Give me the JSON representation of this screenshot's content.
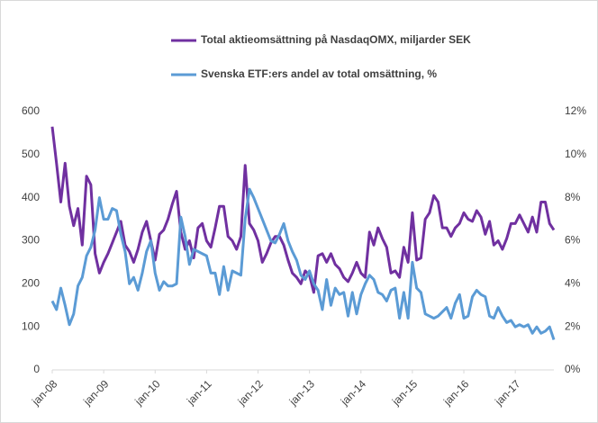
{
  "chart_data": {
    "type": "line",
    "categories": [
      "jan-08",
      null,
      null,
      null,
      null,
      null,
      null,
      null,
      null,
      null,
      null,
      null,
      "jan-09",
      null,
      null,
      null,
      null,
      null,
      null,
      null,
      null,
      null,
      null,
      null,
      "jan-10",
      null,
      null,
      null,
      null,
      null,
      null,
      null,
      null,
      null,
      null,
      null,
      "jan-11",
      null,
      null,
      null,
      null,
      null,
      null,
      null,
      null,
      null,
      null,
      null,
      "jan-12",
      null,
      null,
      null,
      null,
      null,
      null,
      null,
      null,
      null,
      null,
      null,
      "jan-13",
      null,
      null,
      null,
      null,
      null,
      null,
      null,
      null,
      null,
      null,
      null,
      "jan-14",
      null,
      null,
      null,
      null,
      null,
      null,
      null,
      null,
      null,
      null,
      null,
      "jan-15",
      null,
      null,
      null,
      null,
      null,
      null,
      null,
      null,
      null,
      null,
      null,
      "jan-16",
      null,
      null,
      null,
      null,
      null,
      null,
      null,
      null,
      null,
      null,
      null,
      "jan-17",
      null,
      null,
      null,
      null,
      null,
      null,
      null,
      null,
      null
    ],
    "series": [
      {
        "name": "Total aktieomsättning på NasdaqOMX, miljarder SEK",
        "color": "#7030a0",
        "values": [
          565,
          480,
          390,
          480,
          380,
          335,
          375,
          290,
          450,
          430,
          270,
          225,
          250,
          270,
          295,
          320,
          345,
          290,
          275,
          250,
          280,
          320,
          345,
          300,
          255,
          315,
          325,
          350,
          385,
          415,
          320,
          280,
          300,
          260,
          330,
          340,
          300,
          285,
          330,
          380,
          380,
          310,
          300,
          280,
          310,
          475,
          340,
          325,
          300,
          250,
          270,
          295,
          310,
          310,
          290,
          255,
          225,
          215,
          200,
          230,
          220,
          180,
          265,
          270,
          250,
          270,
          245,
          235,
          215,
          205,
          225,
          250,
          225,
          215,
          320,
          290,
          330,
          305,
          285,
          225,
          230,
          215,
          285,
          250,
          365,
          255,
          260,
          350,
          365,
          405,
          390,
          330,
          330,
          310,
          330,
          340,
          365,
          350,
          345,
          370,
          355,
          315,
          345,
          290,
          300,
          280,
          305,
          340,
          340,
          360,
          340,
          320,
          355,
          320,
          390,
          390,
          340,
          325
        ]
      },
      {
        "name": "Svenska ETF:ers andel av total omsättning, %",
        "color": "#5b9bd5",
        "axis": "y2",
        "values": [
          3.2,
          2.8,
          3.8,
          3.0,
          2.1,
          2.6,
          3.9,
          4.3,
          5.3,
          5.7,
          6.5,
          8.0,
          7.0,
          7.0,
          7.5,
          7.4,
          6.3,
          5.5,
          4.0,
          4.3,
          3.7,
          4.5,
          5.5,
          6.0,
          4.5,
          3.7,
          4.1,
          3.9,
          3.9,
          4.0,
          7.1,
          6.2,
          4.9,
          5.6,
          5.5,
          5.4,
          5.3,
          4.5,
          4.5,
          3.5,
          4.8,
          3.7,
          4.6,
          4.5,
          4.4,
          7.0,
          8.4,
          8.0,
          7.5,
          7.0,
          6.5,
          6.0,
          5.9,
          6.3,
          6.8,
          6.0,
          5.5,
          5.1,
          4.4,
          4.2,
          4.6,
          4.0,
          3.7,
          2.8,
          4.2,
          3.0,
          3.8,
          3.5,
          3.6,
          2.5,
          3.6,
          2.6,
          3.5,
          4.0,
          4.4,
          4.2,
          3.6,
          3.5,
          3.2,
          3.7,
          3.8,
          2.4,
          3.6,
          2.4,
          5.0,
          3.8,
          3.6,
          2.6,
          2.5,
          2.4,
          2.5,
          2.7,
          2.9,
          2.4,
          3.1,
          3.5,
          2.4,
          2.5,
          3.4,
          3.7,
          3.5,
          3.4,
          2.5,
          2.4,
          2.9,
          2.5,
          2.2,
          2.3,
          2.0,
          2.1,
          2.0,
          2.1,
          1.7,
          2.0,
          1.7,
          1.8,
          2.0,
          1.4
        ]
      }
    ],
    "ylim": [
      0,
      600
    ],
    "yticks": [
      0,
      100,
      200,
      300,
      400,
      500,
      600
    ],
    "y2lim": [
      0,
      12
    ],
    "y2ticks": [
      {
        "value": 0,
        "label": "0%"
      },
      {
        "value": 2,
        "label": "2%"
      },
      {
        "value": 4,
        "label": "4%"
      },
      {
        "value": 6,
        "label": "6%"
      },
      {
        "value": 8,
        "label": "8%"
      },
      {
        "value": 10,
        "label": "10%"
      },
      {
        "value": 12,
        "label": "12%"
      }
    ],
    "grid": false,
    "legend": "top"
  }
}
